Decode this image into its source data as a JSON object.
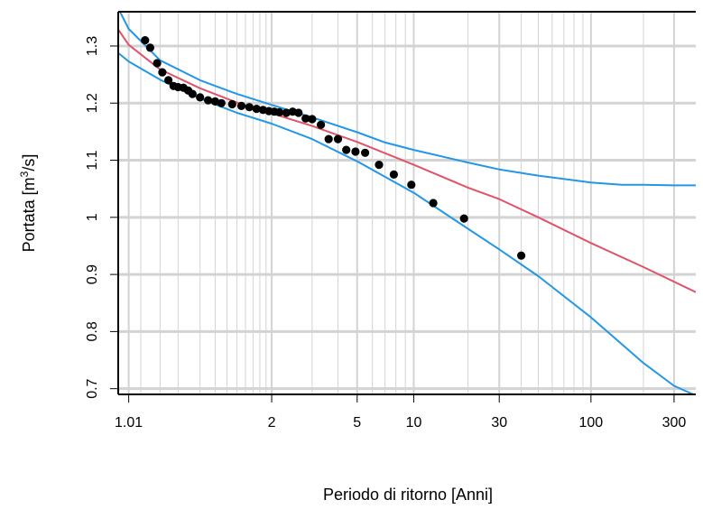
{
  "chart_data": {
    "type": "scatter",
    "title": "",
    "xlabel": "Periodo di ritorno [Anni]",
    "ylabel": {
      "prefix": "Portata  [m",
      "sup": "3",
      "suffix": "/s]"
    },
    "x_scale": "gumbel-reduced-variate",
    "xlim": [
      1.005,
      400
    ],
    "ylim": [
      0.69,
      1.36
    ],
    "x_ticks": [
      {
        "value": 1.01,
        "label": "1.01"
      },
      {
        "value": 2,
        "label": "2"
      },
      {
        "value": 5,
        "label": "5"
      },
      {
        "value": 10,
        "label": "10"
      },
      {
        "value": 30,
        "label": "30"
      },
      {
        "value": 100,
        "label": "100"
      },
      {
        "value": 300,
        "label": "300"
      }
    ],
    "x_minor_grid": [
      1.02,
      1.05,
      1.1,
      1.2,
      1.3,
      1.4,
      1.5,
      1.6,
      1.7,
      1.8,
      1.9,
      3,
      4,
      6,
      7,
      8,
      9,
      20,
      40,
      50,
      60,
      70,
      80,
      90,
      200
    ],
    "y_ticks": [
      {
        "value": 0.7,
        "label": "0.7"
      },
      {
        "value": 0.8,
        "label": "0.8"
      },
      {
        "value": 0.9,
        "label": "0.9"
      },
      {
        "value": 1.0,
        "label": "1"
      },
      {
        "value": 1.1,
        "label": "1.1"
      },
      {
        "value": 1.2,
        "label": "1.2"
      },
      {
        "value": 1.3,
        "label": "1.3"
      }
    ],
    "grid": true,
    "colors": {
      "fit": "#df536b",
      "band": "#2297e6",
      "points": "#000000",
      "grid": "#d3d3d3"
    },
    "series": [
      {
        "kind": "points",
        "x": [
          1.025,
          1.032,
          1.044,
          1.055,
          1.07,
          1.085,
          1.1,
          1.12,
          1.14,
          1.16,
          1.2,
          1.25,
          1.3,
          1.35,
          1.45,
          1.55,
          1.65,
          1.75,
          1.85,
          1.95,
          2.05,
          2.15,
          2.3,
          2.45,
          2.6,
          2.8,
          3.0,
          3.3,
          3.6,
          4.0,
          4.4,
          4.9,
          5.5,
          6.5,
          7.8,
          9.7,
          12.8,
          19.0,
          40.0
        ],
        "y": [
          1.31,
          1.297,
          1.27,
          1.254,
          1.24,
          1.23,
          1.228,
          1.227,
          1.222,
          1.216,
          1.21,
          1.205,
          1.203,
          1.2,
          1.198,
          1.195,
          1.193,
          1.19,
          1.188,
          1.186,
          1.185,
          1.184,
          1.183,
          1.185,
          1.183,
          1.173,
          1.172,
          1.162,
          1.137,
          1.137,
          1.118,
          1.115,
          1.113,
          1.092,
          1.075,
          1.057,
          1.025,
          0.998,
          0.933
        ]
      },
      {
        "kind": "line",
        "role": "fit",
        "x": [
          1.005,
          1.01,
          1.05,
          1.2,
          1.5,
          2,
          3,
          5,
          10,
          20,
          30,
          50,
          100,
          200,
          400
        ],
        "y": [
          1.329,
          1.302,
          1.259,
          1.226,
          1.201,
          1.182,
          1.16,
          1.132,
          1.092,
          1.052,
          1.032,
          1.0,
          0.955,
          0.913,
          0.869
        ]
      },
      {
        "kind": "line",
        "role": "upper-confidence",
        "x": [
          1.005,
          1.01,
          1.05,
          1.2,
          1.5,
          2,
          3,
          5,
          7,
          10,
          20,
          30,
          50,
          100,
          150,
          200,
          300,
          400
        ],
        "y": [
          1.366,
          1.33,
          1.275,
          1.24,
          1.216,
          1.197,
          1.175,
          1.149,
          1.131,
          1.118,
          1.096,
          1.084,
          1.073,
          1.061,
          1.057,
          1.057,
          1.056,
          1.056
        ]
      },
      {
        "kind": "line",
        "role": "lower-confidence",
        "x": [
          1.005,
          1.01,
          1.05,
          1.2,
          1.5,
          2,
          3,
          5,
          10,
          20,
          30,
          50,
          100,
          200,
          300,
          400
        ],
        "y": [
          1.288,
          1.273,
          1.241,
          1.208,
          1.183,
          1.164,
          1.137,
          1.098,
          1.043,
          0.98,
          0.944,
          0.897,
          0.825,
          0.745,
          0.705,
          0.688
        ]
      }
    ]
  }
}
